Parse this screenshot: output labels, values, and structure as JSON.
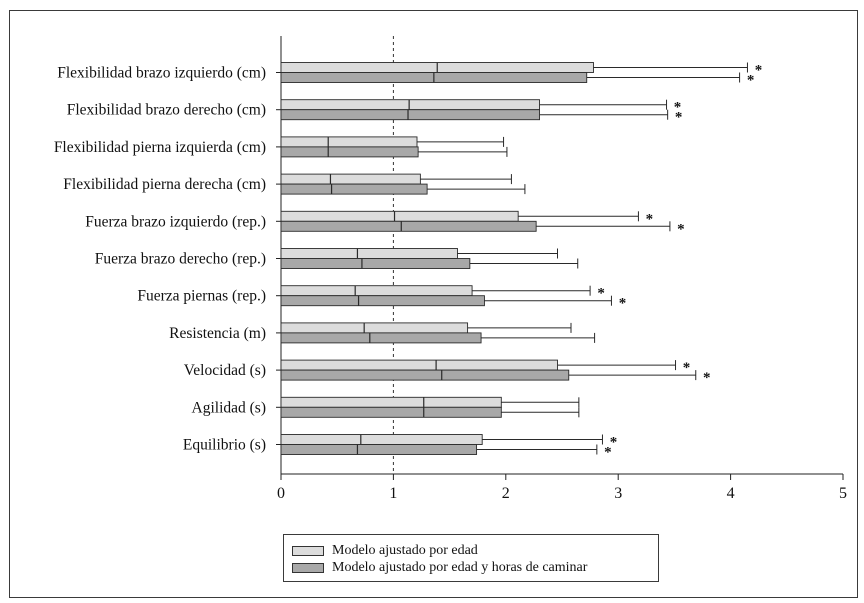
{
  "chart_data": {
    "type": "bar",
    "orientation": "horizontal",
    "categories": [
      "Flexibilidad brazo izquierdo (cm)",
      "Flexibilidad brazo derecho (cm)",
      "Flexibilidad pierna izquierda (cm)",
      "Flexibilidad pierna derecha (cm)",
      "Fuerza brazo izquierdo (rep.)",
      "Fuerza brazo derecho (rep.)",
      "Fuerza piernas (rep.)",
      "Resistencia (m)",
      "Velocidad (s)",
      "Agilidad (s)",
      "Equilibrio (s)"
    ],
    "series": [
      {
        "name": "Modelo ajustado por edad",
        "values": [
          2.78,
          2.3,
          1.21,
          1.24,
          2.11,
          1.57,
          1.7,
          1.66,
          2.46,
          1.96,
          1.79
        ],
        "ci_lower": [
          1.39,
          1.14,
          0.42,
          0.44,
          1.01,
          0.68,
          0.66,
          0.74,
          1.38,
          1.27,
          0.71
        ],
        "ci_upper": [
          4.15,
          3.43,
          1.98,
          2.05,
          3.18,
          2.46,
          2.75,
          2.58,
          3.51,
          2.65,
          2.86
        ],
        "significant": [
          true,
          true,
          false,
          false,
          true,
          false,
          true,
          false,
          true,
          false,
          true
        ],
        "color": "#dcdcdc"
      },
      {
        "name": "Modelo ajustado por edad y horas de caminar",
        "values": [
          2.72,
          2.3,
          1.22,
          1.3,
          2.27,
          1.68,
          1.81,
          1.78,
          2.56,
          1.96,
          1.74
        ],
        "ci_lower": [
          1.36,
          1.13,
          0.42,
          0.45,
          1.07,
          0.72,
          0.69,
          0.79,
          1.43,
          1.27,
          0.68
        ],
        "ci_upper": [
          4.08,
          3.44,
          2.01,
          2.17,
          3.46,
          2.64,
          2.94,
          2.79,
          3.69,
          2.65,
          2.81
        ],
        "significant": [
          true,
          true,
          false,
          false,
          true,
          false,
          true,
          false,
          true,
          false,
          true
        ],
        "color": "#a8a8a8"
      }
    ],
    "xlim": [
      0,
      5
    ],
    "xticks": [
      "0",
      "1",
      "2",
      "3",
      "4",
      "5"
    ],
    "reference_line": 1,
    "significance_marker": "*",
    "legend_position": "bottom-center",
    "grid": false
  }
}
